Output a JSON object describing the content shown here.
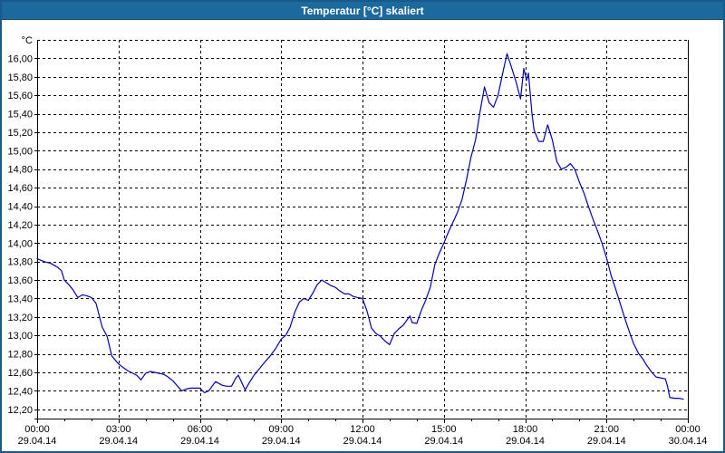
{
  "window": {
    "title": "Temperatur [°C] skaliert"
  },
  "colors": {
    "titlebar_bg": "#1C699E",
    "titlebar_text": "#FFFFFF",
    "window_border": "#185A8D",
    "plot_bg": "#FFFFFF",
    "line": "#0000B8",
    "grid": "#000000",
    "label": "#000000"
  },
  "chart_data": {
    "type": "line",
    "title": "Temperatur [°C] skaliert",
    "ylabel": "°C",
    "xlabel": "",
    "grid": true,
    "legend": "none",
    "ylim": [
      12.1,
      16.2
    ],
    "xlim_hours": [
      0,
      24
    ],
    "y_ticks": [
      {
        "label": "16,00",
        "value": 16.0
      },
      {
        "label": "15,80",
        "value": 15.8
      },
      {
        "label": "15,60",
        "value": 15.6
      },
      {
        "label": "15,40",
        "value": 15.4
      },
      {
        "label": "15,20",
        "value": 15.2
      },
      {
        "label": "15,00",
        "value": 15.0
      },
      {
        "label": "14,80",
        "value": 14.8
      },
      {
        "label": "14,60",
        "value": 14.6
      },
      {
        "label": "14,40",
        "value": 14.4
      },
      {
        "label": "14,20",
        "value": 14.2
      },
      {
        "label": "14,00",
        "value": 14.0
      },
      {
        "label": "13,80",
        "value": 13.8
      },
      {
        "label": "13,60",
        "value": 13.6
      },
      {
        "label": "13,40",
        "value": 13.4
      },
      {
        "label": "13,20",
        "value": 13.2
      },
      {
        "label": "13,00",
        "value": 13.0
      },
      {
        "label": "12,80",
        "value": 12.8
      },
      {
        "label": "12,60",
        "value": 12.6
      },
      {
        "label": "12,40",
        "value": 12.4
      },
      {
        "label": "12,20",
        "value": 12.2
      }
    ],
    "x_ticks": [
      {
        "hour": 0,
        "time": "00:00",
        "date": "29.04.14"
      },
      {
        "hour": 3,
        "time": "03:00",
        "date": "29.04.14"
      },
      {
        "hour": 6,
        "time": "06:00",
        "date": "29.04.14"
      },
      {
        "hour": 9,
        "time": "09:00",
        "date": "29.04.14"
      },
      {
        "hour": 12,
        "time": "12:00",
        "date": "29.04.14"
      },
      {
        "hour": 15,
        "time": "15:00",
        "date": "29.04.14"
      },
      {
        "hour": 18,
        "time": "18:00",
        "date": "29.04.14"
      },
      {
        "hour": 21,
        "time": "21:00",
        "date": "29.04.14"
      },
      {
        "hour": 24,
        "time": "00:00",
        "date": "30.04.14"
      }
    ],
    "minor_x_tick_every_hours": 1,
    "series": [
      {
        "name": "Temperatur",
        "unit": "°C",
        "points": [
          [
            0,
            13.83
          ],
          [
            0.25,
            13.8
          ],
          [
            0.5,
            13.78
          ],
          [
            0.75,
            13.74
          ],
          [
            0.9,
            13.7
          ],
          [
            1,
            13.6
          ],
          [
            1.17,
            13.55
          ],
          [
            1.33,
            13.49
          ],
          [
            1.5,
            13.41
          ],
          [
            1.67,
            13.44
          ],
          [
            1.83,
            13.43
          ],
          [
            2,
            13.41
          ],
          [
            2.17,
            13.35
          ],
          [
            2.4,
            13.09
          ],
          [
            2.58,
            12.99
          ],
          [
            2.75,
            12.78
          ],
          [
            3,
            12.69
          ],
          [
            3.33,
            12.62
          ],
          [
            3.67,
            12.57
          ],
          [
            3.83,
            12.52
          ],
          [
            4,
            12.59
          ],
          [
            4.17,
            12.61
          ],
          [
            4.33,
            12.6
          ],
          [
            4.67,
            12.58
          ],
          [
            4.83,
            12.55
          ],
          [
            5,
            12.51
          ],
          [
            5.33,
            12.4
          ],
          [
            5.5,
            12.42
          ],
          [
            5.67,
            12.43
          ],
          [
            6,
            12.43
          ],
          [
            6.17,
            12.38
          ],
          [
            6.33,
            12.4
          ],
          [
            6.5,
            12.47
          ],
          [
            6.58,
            12.5
          ],
          [
            6.83,
            12.46
          ],
          [
            7,
            12.45
          ],
          [
            7.17,
            12.45
          ],
          [
            7.33,
            12.54
          ],
          [
            7.42,
            12.57
          ],
          [
            7.67,
            12.41
          ],
          [
            7.83,
            12.49
          ],
          [
            8,
            12.57
          ],
          [
            8.17,
            12.63
          ],
          [
            8.42,
            12.72
          ],
          [
            8.6,
            12.78
          ],
          [
            8.8,
            12.86
          ],
          [
            9,
            12.96
          ],
          [
            9.17,
            13.0
          ],
          [
            9.33,
            13.09
          ],
          [
            9.5,
            13.25
          ],
          [
            9.67,
            13.36
          ],
          [
            9.83,
            13.4
          ],
          [
            10,
            13.38
          ],
          [
            10.17,
            13.46
          ],
          [
            10.33,
            13.55
          ],
          [
            10.5,
            13.6
          ],
          [
            10.67,
            13.57
          ],
          [
            10.83,
            13.54
          ],
          [
            11,
            13.52
          ],
          [
            11.17,
            13.48
          ],
          [
            11.33,
            13.45
          ],
          [
            11.5,
            13.45
          ],
          [
            11.67,
            13.42
          ],
          [
            11.83,
            13.41
          ],
          [
            12,
            13.4
          ],
          [
            12.17,
            13.26
          ],
          [
            12.33,
            13.08
          ],
          [
            12.5,
            13.02
          ],
          [
            12.67,
            12.99
          ],
          [
            12.83,
            12.94
          ],
          [
            13,
            12.9
          ],
          [
            13.17,
            13.02
          ],
          [
            13.33,
            13.07
          ],
          [
            13.5,
            13.11
          ],
          [
            13.67,
            13.18
          ],
          [
            13.75,
            13.21
          ],
          [
            13.83,
            13.14
          ],
          [
            14,
            13.13
          ],
          [
            14.17,
            13.27
          ],
          [
            14.33,
            13.38
          ],
          [
            14.5,
            13.52
          ],
          [
            14.67,
            13.77
          ],
          [
            14.83,
            13.89
          ],
          [
            15,
            14.0
          ],
          [
            15.17,
            14.12
          ],
          [
            15.33,
            14.22
          ],
          [
            15.5,
            14.33
          ],
          [
            15.67,
            14.47
          ],
          [
            15.83,
            14.68
          ],
          [
            16,
            14.93
          ],
          [
            16.17,
            15.12
          ],
          [
            16.33,
            15.41
          ],
          [
            16.5,
            15.69
          ],
          [
            16.67,
            15.52
          ],
          [
            16.83,
            15.47
          ],
          [
            17,
            15.6
          ],
          [
            17.17,
            15.84
          ],
          [
            17.33,
            16.05
          ],
          [
            17.5,
            15.9
          ],
          [
            17.67,
            15.74
          ],
          [
            17.83,
            15.56
          ],
          [
            17.95,
            15.89
          ],
          [
            18.05,
            15.76
          ],
          [
            18.12,
            15.84
          ],
          [
            18.25,
            15.4
          ],
          [
            18.33,
            15.22
          ],
          [
            18.5,
            15.1
          ],
          [
            18.67,
            15.1
          ],
          [
            18.83,
            15.28
          ],
          [
            19,
            15.12
          ],
          [
            19.17,
            14.88
          ],
          [
            19.33,
            14.8
          ],
          [
            19.5,
            14.82
          ],
          [
            19.67,
            14.86
          ],
          [
            19.83,
            14.8
          ],
          [
            20,
            14.66
          ],
          [
            20.17,
            14.54
          ],
          [
            20.33,
            14.4
          ],
          [
            20.5,
            14.26
          ],
          [
            20.67,
            14.13
          ],
          [
            20.83,
            14.0
          ],
          [
            21,
            13.84
          ],
          [
            21.17,
            13.65
          ],
          [
            21.33,
            13.51
          ],
          [
            21.5,
            13.35
          ],
          [
            21.67,
            13.19
          ],
          [
            21.83,
            13.05
          ],
          [
            22,
            12.91
          ],
          [
            22.17,
            12.81
          ],
          [
            22.33,
            12.75
          ],
          [
            22.5,
            12.67
          ],
          [
            22.67,
            12.6
          ],
          [
            22.83,
            12.55
          ],
          [
            23,
            12.54
          ],
          [
            23.17,
            12.53
          ],
          [
            23.25,
            12.45
          ],
          [
            23.33,
            12.33
          ],
          [
            23.5,
            12.32
          ],
          [
            23.67,
            12.32
          ],
          [
            23.83,
            12.31
          ]
        ]
      }
    ]
  }
}
